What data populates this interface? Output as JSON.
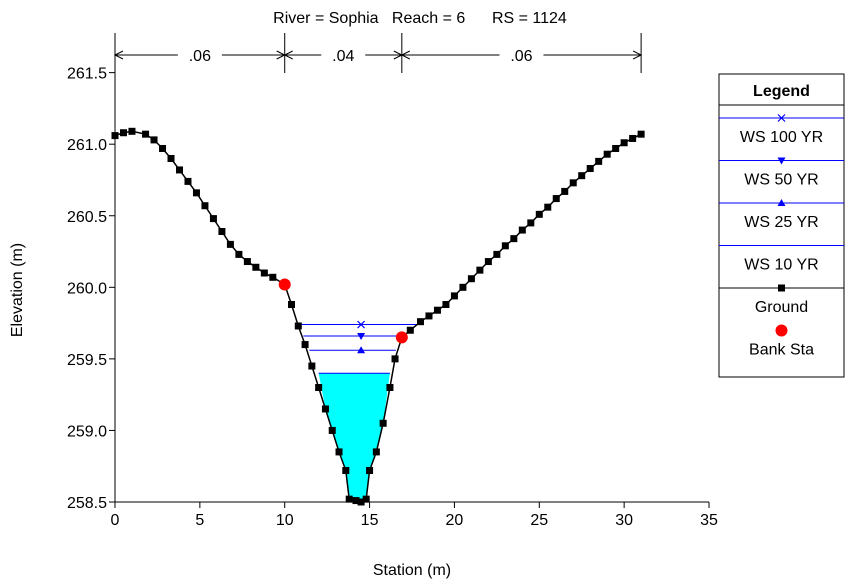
{
  "chart_data": {
    "type": "line",
    "title": "River = Sophia   Reach = 6      RS = 1124",
    "xlabel": "Station (m)",
    "ylabel": "Elevation (m)",
    "xlim": [
      0,
      35
    ],
    "ylim": [
      258.5,
      261.7
    ],
    "x_ticks": [
      "0",
      "5",
      "10",
      "15",
      "20",
      "25",
      "30",
      "35"
    ],
    "y_ticks": [
      "258.5",
      "259.0",
      "259.5",
      "260.0",
      "260.5",
      "261.0",
      "261.5"
    ],
    "x_tick_values": [
      0,
      5,
      10,
      15,
      20,
      25,
      30,
      35
    ],
    "y_tick_values": [
      258.5,
      259.0,
      259.5,
      260.0,
      260.5,
      261.0,
      261.5
    ],
    "grid": false,
    "legend_position": "right",
    "manning_n": [
      {
        "label": ".06",
        "from": 0,
        "to": 10
      },
      {
        "label": ".04",
        "from": 10,
        "to": 16.9
      },
      {
        "label": ".06",
        "from": 16.9,
        "to": 31
      }
    ],
    "ground": [
      [
        0,
        261.06
      ],
      [
        0.5,
        261.08
      ],
      [
        1.0,
        261.09
      ],
      [
        1.8,
        261.07
      ],
      [
        2.3,
        261.03
      ],
      [
        2.8,
        260.97
      ],
      [
        3.3,
        260.9
      ],
      [
        3.8,
        260.82
      ],
      [
        4.3,
        260.74
      ],
      [
        4.8,
        260.66
      ],
      [
        5.3,
        260.57
      ],
      [
        5.8,
        260.48
      ],
      [
        6.3,
        260.39
      ],
      [
        6.8,
        260.3
      ],
      [
        7.3,
        260.23
      ],
      [
        7.8,
        260.18
      ],
      [
        8.3,
        260.14
      ],
      [
        8.8,
        260.1
      ],
      [
        9.3,
        260.07
      ],
      [
        10.0,
        260.02
      ],
      [
        10.4,
        259.88
      ],
      [
        10.8,
        259.73
      ],
      [
        11.2,
        259.6
      ],
      [
        11.6,
        259.45
      ],
      [
        12.0,
        259.3
      ],
      [
        12.4,
        259.15
      ],
      [
        12.8,
        259.0
      ],
      [
        13.2,
        258.85
      ],
      [
        13.6,
        258.72
      ],
      [
        13.8,
        258.52
      ],
      [
        14.2,
        258.51
      ],
      [
        14.5,
        258.5
      ],
      [
        14.8,
        258.52
      ],
      [
        15.0,
        258.72
      ],
      [
        15.4,
        258.85
      ],
      [
        15.8,
        259.05
      ],
      [
        16.2,
        259.3
      ],
      [
        16.5,
        259.5
      ],
      [
        16.9,
        259.65
      ],
      [
        17.4,
        259.7
      ],
      [
        18.0,
        259.76
      ],
      [
        18.5,
        259.8
      ],
      [
        19.0,
        259.84
      ],
      [
        19.5,
        259.88
      ],
      [
        20.0,
        259.94
      ],
      [
        20.5,
        260.0
      ],
      [
        21.0,
        260.06
      ],
      [
        21.5,
        260.12
      ],
      [
        22.0,
        260.18
      ],
      [
        22.5,
        260.23
      ],
      [
        23.0,
        260.29
      ],
      [
        23.5,
        260.34
      ],
      [
        24.0,
        260.4
      ],
      [
        24.5,
        260.45
      ],
      [
        25.0,
        260.51
      ],
      [
        25.5,
        260.56
      ],
      [
        26.0,
        260.62
      ],
      [
        26.5,
        260.67
      ],
      [
        27.0,
        260.73
      ],
      [
        27.5,
        260.78
      ],
      [
        28.0,
        260.83
      ],
      [
        28.5,
        260.88
      ],
      [
        29.0,
        260.93
      ],
      [
        29.5,
        260.97
      ],
      [
        30.0,
        261.01
      ],
      [
        30.5,
        261.04
      ],
      [
        31.0,
        261.07
      ]
    ],
    "bank_stations": [
      [
        10.0,
        260.02
      ],
      [
        16.9,
        259.65
      ]
    ],
    "series": [
      {
        "name": "WS 100 YR",
        "elevation": 259.74,
        "x_from": 10.85,
        "x_to": 17.75,
        "marker": "x",
        "color": "#0000ff"
      },
      {
        "name": "WS 50 YR",
        "elevation": 259.66,
        "x_from": 11.1,
        "x_to": 16.9,
        "marker": "triangle-down",
        "color": "#0000ff"
      },
      {
        "name": "WS 25 YR",
        "elevation": 259.56,
        "x_from": 11.45,
        "x_to": 16.55,
        "marker": "triangle-up",
        "color": "#0000ff"
      },
      {
        "name": "WS 10 YR",
        "elevation": 259.4,
        "x_from": 12.0,
        "x_to": 16.2,
        "marker": "none",
        "color": "#0000ff",
        "fill": "#00ffff"
      },
      {
        "name": "Ground",
        "marker": "square",
        "color": "#000000"
      },
      {
        "name": "Bank Sta",
        "marker": "circle",
        "color": "#ff0000"
      }
    ],
    "legend": {
      "title": "Legend",
      "entries": [
        "WS 100 YR",
        "WS 50 YR",
        "WS 25 YR",
        "WS 10 YR",
        "Ground",
        "Bank Sta"
      ]
    }
  }
}
